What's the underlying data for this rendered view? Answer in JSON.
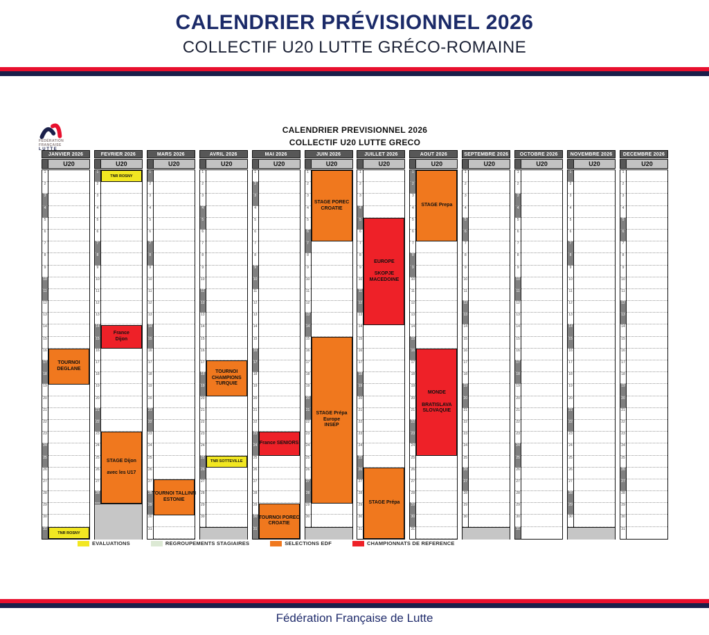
{
  "page": {
    "title": "CALENDRIER PRÉVISIONNEL 2026",
    "subtitle": "COLLECTIF U20 LUTTE GRÉCO-ROMAINE",
    "footer": "Fédération Française de Lutte"
  },
  "brand_colors": {
    "navy": "#1a1f4a",
    "red": "#e8102e"
  },
  "logo": {
    "line1": "FÉDÉRATION",
    "line2": "FRANÇAISE",
    "line3": "LUTTE"
  },
  "calendar": {
    "title": "CALENDRIER PREVISIONNEL 2026",
    "subtitle": "COLLECTIF U20 LUTTE GRECO",
    "group_label": "U20",
    "event_types": {
      "evaluation": "#f2e722",
      "regroupement": "#dce9d4",
      "selection": "#f0781e",
      "championnat": "#ee2128"
    },
    "months": [
      {
        "name": "JANVIER 2026",
        "slug": "janvier",
        "days": 31,
        "weekends": [
          3,
          4,
          10,
          11,
          17,
          18,
          24,
          25,
          31
        ],
        "events": [
          {
            "lines": [
              "TOURNOI",
              "DEGLANE"
            ],
            "start": 16,
            "end": 18,
            "type": "selection"
          },
          {
            "lines": [
              "TNR ROSNY"
            ],
            "start": 31,
            "end": 31,
            "type": "evaluation"
          }
        ]
      },
      {
        "name": "FEVRIER 2026",
        "slug": "fevrier",
        "days": 28,
        "weekends": [
          1,
          7,
          8,
          14,
          15,
          21,
          22,
          28
        ],
        "events": [
          {
            "lines": [
              "TNR ROSNY"
            ],
            "start": 1,
            "end": 1,
            "type": "evaluation"
          },
          {
            "lines": [
              "France",
              "Dijon"
            ],
            "start": 14,
            "end": 15,
            "type": "championnat"
          },
          {
            "lines": [
              "STAGE Dijon",
              "",
              "avec les U17"
            ],
            "start": 23,
            "end": 28,
            "type": "selection"
          }
        ]
      },
      {
        "name": "MARS 2026",
        "slug": "mars",
        "days": 31,
        "weekends": [
          1,
          7,
          8,
          14,
          15,
          21,
          22,
          28,
          29
        ],
        "events": [
          {
            "lines": [
              "TOURNOI TALLINN",
              "ESTONIE"
            ],
            "start": 27,
            "end": 29,
            "type": "selection"
          }
        ]
      },
      {
        "name": "AVRIL 2026",
        "slug": "avril",
        "days": 30,
        "weekends": [
          4,
          5,
          11,
          12,
          18,
          19,
          25,
          26
        ],
        "events": [
          {
            "lines": [
              "TOURNOI",
              "CHAMPIONS",
              "TURQUIE"
            ],
            "start": 17,
            "end": 19,
            "type": "selection"
          },
          {
            "lines": [
              "TNR SOTTEVILLE"
            ],
            "start": 25,
            "end": 25,
            "type": "evaluation"
          }
        ]
      },
      {
        "name": "MAI 2026",
        "slug": "mai",
        "days": 31,
        "weekends": [
          2,
          3,
          9,
          10,
          16,
          17,
          23,
          24,
          30,
          31
        ],
        "events": [
          {
            "lines": [
              "France SENIORS"
            ],
            "start": 23,
            "end": 24,
            "type": "championnat"
          },
          {
            "lines": [
              "TOURNOI POREC",
              "CROATIE"
            ],
            "start": 29,
            "end": 31,
            "type": "selection"
          }
        ]
      },
      {
        "name": "JUIN 2026",
        "slug": "juin",
        "days": 30,
        "weekends": [
          6,
          7,
          13,
          14,
          20,
          21,
          27,
          28
        ],
        "events": [
          {
            "lines": [
              "STAGE POREC",
              "CROATIE"
            ],
            "start": 1,
            "end": 6,
            "type": "selection"
          },
          {
            "lines": [
              "STAGE Prépa",
              "Europe",
              "INSEP"
            ],
            "start": 15,
            "end": 28,
            "type": "selection"
          }
        ]
      },
      {
        "name": "JUILLET 2026",
        "slug": "juillet",
        "days": 31,
        "weekends": [
          4,
          5,
          11,
          12,
          18,
          19,
          25,
          26
        ],
        "events": [
          {
            "lines": [
              "EUROPE",
              "",
              "SKOPJE",
              "MACEDOINE"
            ],
            "start": 5,
            "end": 13,
            "type": "championnat"
          },
          {
            "lines": [
              "STAGE Prépa"
            ],
            "start": 26,
            "end": 31,
            "type": "selection"
          }
        ]
      },
      {
        "name": "AOUT 2026",
        "slug": "aout",
        "days": 31,
        "weekends": [
          1,
          2,
          8,
          9,
          15,
          16,
          22,
          23,
          29,
          30
        ],
        "events": [
          {
            "lines": [
              "STAGE Prepa"
            ],
            "start": 1,
            "end": 6,
            "type": "selection"
          },
          {
            "lines": [
              "MONDE",
              "",
              "BRATISLAVA",
              "SLOVAQUIE"
            ],
            "start": 16,
            "end": 24,
            "type": "championnat"
          }
        ]
      },
      {
        "name": "SEPTEMBRE 2026",
        "slug": "septembre",
        "days": 30,
        "weekends": [
          5,
          6,
          12,
          13,
          19,
          20,
          26,
          27
        ],
        "events": []
      },
      {
        "name": "OCTOBRE 2026",
        "slug": "octobre",
        "days": 31,
        "weekends": [
          3,
          4,
          10,
          11,
          17,
          18,
          24,
          25,
          31
        ],
        "events": []
      },
      {
        "name": "NOVEMBRE 2026",
        "slug": "novembre",
        "days": 30,
        "weekends": [
          1,
          7,
          8,
          14,
          15,
          21,
          22,
          28,
          29
        ],
        "events": []
      },
      {
        "name": "DECEMBRE 2026",
        "slug": "decembre",
        "days": 31,
        "weekends": [
          5,
          6,
          12,
          13,
          19,
          20,
          26,
          27
        ],
        "events": []
      }
    ]
  },
  "legend": [
    {
      "label": "EVALUATIONS",
      "type": "evaluation"
    },
    {
      "label": "REGROUPEMENTS STAGIAIRES",
      "type": "regroupement"
    },
    {
      "label": "SELECTIONS EDF",
      "type": "selection"
    },
    {
      "label": "CHAMPIONNATS DE REFERENCE",
      "type": "championnat"
    }
  ]
}
